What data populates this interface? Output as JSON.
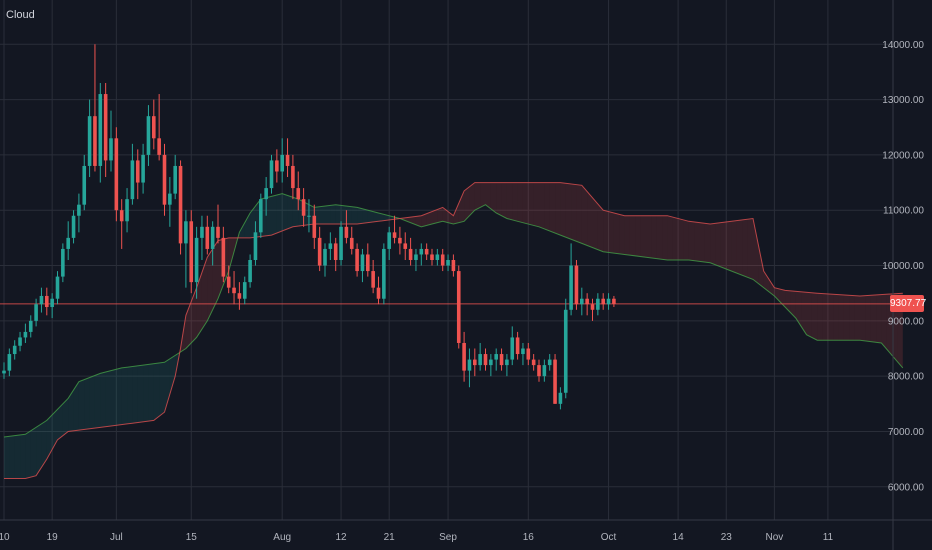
{
  "title": "Cloud",
  "colors": {
    "background": "#131722",
    "grid": "#2a2e39",
    "up": "#26a69a",
    "down": "#ef5350",
    "cloud_bull_fill": "rgba(38,166,154,0.14)",
    "cloud_bear_fill": "rgba(239,83,80,0.16)",
    "span_a": "#43a047",
    "span_b": "#e05050",
    "price_line": "#ef5350",
    "axis_text": "#b2b5be"
  },
  "current_price": {
    "value": 9307.77,
    "label": "9307.77"
  },
  "chart_data": {
    "type": "candlestick",
    "title": "Cloud",
    "ylim": [
      5400,
      14800
    ],
    "grid": true,
    "y_ticks": [
      6000,
      7000,
      8000,
      9000,
      10000,
      11000,
      12000,
      13000,
      14000
    ],
    "y_tick_labels": [
      "6000.00",
      "7000.00",
      "8000.00",
      "9000.00",
      "10000.00",
      "11000.00",
      "12000.00",
      "13000.00",
      "14000.00"
    ],
    "x_ticks": [
      {
        "label": "10",
        "index": 0
      },
      {
        "label": "19",
        "index": 9
      },
      {
        "label": "Jul",
        "index": 21
      },
      {
        "label": "15",
        "index": 35
      },
      {
        "label": "Aug",
        "index": 52
      },
      {
        "label": "12",
        "index": 63
      },
      {
        "label": "21",
        "index": 72
      },
      {
        "label": "Sep",
        "index": 83
      },
      {
        "label": "16",
        "index": 98
      },
      {
        "label": "Oct",
        "index": 113
      },
      {
        "label": "14",
        "index": 126
      },
      {
        "label": "23",
        "index": 135
      },
      {
        "label": "Nov",
        "index": 144
      },
      {
        "label": "11",
        "index": 154
      }
    ],
    "candles": [
      [
        8050,
        8250,
        7950,
        8100
      ],
      [
        8100,
        8500,
        8000,
        8400
      ],
      [
        8400,
        8650,
        8300,
        8550
      ],
      [
        8550,
        8800,
        8450,
        8700
      ],
      [
        8700,
        8950,
        8600,
        8800
      ],
      [
        8800,
        9100,
        8700,
        9000
      ],
      [
        9000,
        9400,
        8900,
        9300
      ],
      [
        9300,
        9600,
        9150,
        9450
      ],
      [
        9450,
        9600,
        9100,
        9250
      ],
      [
        9250,
        9500,
        9050,
        9400
      ],
      [
        9400,
        9900,
        9300,
        9800
      ],
      [
        9800,
        10400,
        9700,
        10300
      ],
      [
        10300,
        10800,
        10100,
        10500
      ],
      [
        10500,
        11000,
        10400,
        10900
      ],
      [
        10900,
        11300,
        10600,
        11100
      ],
      [
        11100,
        12000,
        11000,
        11800
      ],
      [
        11800,
        13000,
        11600,
        12700
      ],
      [
        12700,
        14000,
        11700,
        11800
      ],
      [
        11800,
        13300,
        11500,
        13100
      ],
      [
        13100,
        13300,
        11600,
        11900
      ],
      [
        11900,
        12800,
        11700,
        12300
      ],
      [
        12300,
        12500,
        10800,
        11000
      ],
      [
        11000,
        11200,
        10300,
        10800
      ],
      [
        10800,
        11400,
        10600,
        11200
      ],
      [
        11200,
        12200,
        11100,
        11900
      ],
      [
        11900,
        12100,
        11200,
        11500
      ],
      [
        11500,
        12200,
        11300,
        12000
      ],
      [
        12000,
        12900,
        11800,
        12700
      ],
      [
        12700,
        13000,
        12100,
        12300
      ],
      [
        12300,
        13100,
        11900,
        12000
      ],
      [
        12000,
        12200,
        10900,
        11100
      ],
      [
        11100,
        11600,
        10700,
        11300
      ],
      [
        11300,
        12000,
        11200,
        11800
      ],
      [
        11800,
        11900,
        10200,
        10400
      ],
      [
        10400,
        11000,
        9600,
        10800
      ],
      [
        10800,
        11000,
        9500,
        9700
      ],
      [
        9700,
        10700,
        9400,
        10500
      ],
      [
        10500,
        10900,
        10100,
        10700
      ],
      [
        10700,
        10900,
        10200,
        10300
      ],
      [
        10300,
        10800,
        10000,
        10700
      ],
      [
        10700,
        11100,
        10400,
        10500
      ],
      [
        10500,
        10700,
        9700,
        9800
      ],
      [
        9800,
        10000,
        9500,
        9600
      ],
      [
        9600,
        9900,
        9300,
        9500
      ],
      [
        9500,
        9700,
        9200,
        9400
      ],
      [
        9400,
        9800,
        9300,
        9700
      ],
      [
        9700,
        10200,
        9600,
        10100
      ],
      [
        10100,
        10800,
        10000,
        10600
      ],
      [
        10600,
        11300,
        10500,
        11200
      ],
      [
        11200,
        11600,
        10900,
        11400
      ],
      [
        11400,
        12000,
        11300,
        11900
      ],
      [
        11900,
        12100,
        11500,
        11700
      ],
      [
        11700,
        12300,
        11500,
        12000
      ],
      [
        12000,
        12300,
        11600,
        11800
      ],
      [
        11800,
        12000,
        11200,
        11400
      ],
      [
        11400,
        11700,
        11000,
        11200
      ],
      [
        11200,
        11400,
        10700,
        10900
      ],
      [
        10900,
        11200,
        10600,
        10900
      ],
      [
        10900,
        11100,
        10300,
        10500
      ],
      [
        10500,
        10700,
        9900,
        10000
      ],
      [
        10000,
        10400,
        9800,
        10300
      ],
      [
        10300,
        10600,
        10100,
        10400
      ],
      [
        10400,
        10500,
        9900,
        10100
      ],
      [
        10100,
        10800,
        10000,
        10700
      ],
      [
        10700,
        11000,
        10400,
        10500
      ],
      [
        10500,
        10700,
        10200,
        10300
      ],
      [
        10300,
        10400,
        9800,
        9900
      ],
      [
        9900,
        10300,
        9700,
        10200
      ],
      [
        10200,
        10400,
        9800,
        9900
      ],
      [
        9900,
        10100,
        9500,
        9600
      ],
      [
        9600,
        9800,
        9300,
        9400
      ],
      [
        9400,
        10400,
        9300,
        10300
      ],
      [
        10300,
        10700,
        10100,
        10600
      ],
      [
        10600,
        10900,
        10400,
        10500
      ],
      [
        10500,
        10700,
        10200,
        10400
      ],
      [
        10400,
        10600,
        10100,
        10300
      ],
      [
        10300,
        10500,
        10000,
        10100
      ],
      [
        10100,
        10300,
        9900,
        10200
      ],
      [
        10200,
        10400,
        10000,
        10300
      ],
      [
        10300,
        10400,
        10100,
        10200
      ],
      [
        10200,
        10300,
        10000,
        10100
      ],
      [
        10100,
        10300,
        10000,
        10200
      ],
      [
        10200,
        10300,
        9900,
        10000
      ],
      [
        10000,
        10200,
        9900,
        10100
      ],
      [
        10100,
        10200,
        9800,
        9900
      ],
      [
        9900,
        10000,
        8500,
        8600
      ],
      [
        8600,
        8800,
        7900,
        8100
      ],
      [
        8100,
        8500,
        7800,
        8300
      ],
      [
        8300,
        8500,
        8000,
        8200
      ],
      [
        8200,
        8600,
        8100,
        8400
      ],
      [
        8400,
        8500,
        8100,
        8200
      ],
      [
        8200,
        8400,
        8000,
        8300
      ],
      [
        8300,
        8500,
        8100,
        8400
      ],
      [
        8400,
        8500,
        8100,
        8200
      ],
      [
        8200,
        8400,
        8000,
        8300
      ],
      [
        8300,
        8900,
        8200,
        8700
      ],
      [
        8700,
        8800,
        8300,
        8400
      ],
      [
        8400,
        8600,
        8200,
        8500
      ],
      [
        8500,
        8600,
        8200,
        8300
      ],
      [
        8300,
        8400,
        8100,
        8200
      ],
      [
        8200,
        8300,
        7900,
        8000
      ],
      [
        8000,
        8300,
        7900,
        8200
      ],
      [
        8200,
        8400,
        8100,
        8300
      ],
      [
        8300,
        8400,
        7500,
        7500
      ],
      [
        7500,
        7800,
        7400,
        7700
      ],
      [
        7700,
        9400,
        7600,
        9200
      ],
      [
        9200,
        10400,
        9100,
        10000
      ],
      [
        10000,
        10100,
        9200,
        9300
      ],
      [
        9300,
        9600,
        9100,
        9400
      ],
      [
        9400,
        9500,
        9100,
        9300
      ],
      [
        9300,
        9400,
        9000,
        9200
      ],
      [
        9200,
        9500,
        9100,
        9400
      ],
      [
        9400,
        9500,
        9200,
        9300
      ],
      [
        9300,
        9500,
        9200,
        9400
      ],
      [
        9400,
        9450,
        9250,
        9308
      ]
    ],
    "span_a": [
      [
        0,
        6900
      ],
      [
        4,
        6950
      ],
      [
        8,
        7200
      ],
      [
        12,
        7600
      ],
      [
        14,
        7900
      ],
      [
        18,
        8050
      ],
      [
        22,
        8150
      ],
      [
        26,
        8200
      ],
      [
        30,
        8250
      ],
      [
        34,
        8500
      ],
      [
        36,
        8700
      ],
      [
        38,
        9000
      ],
      [
        40,
        9400
      ],
      [
        42,
        9900
      ],
      [
        44,
        10600
      ],
      [
        46,
        10950
      ],
      [
        48,
        11200
      ],
      [
        50,
        11250
      ],
      [
        52,
        11300
      ],
      [
        55,
        11200
      ],
      [
        58,
        11050
      ],
      [
        62,
        11100
      ],
      [
        66,
        11050
      ],
      [
        70,
        10950
      ],
      [
        74,
        10850
      ],
      [
        78,
        10700
      ],
      [
        80,
        10750
      ],
      [
        82,
        10800
      ],
      [
        84,
        10750
      ],
      [
        86,
        10800
      ],
      [
        88,
        11000
      ],
      [
        90,
        11100
      ],
      [
        92,
        10950
      ],
      [
        94,
        10850
      ],
      [
        96,
        10800
      ],
      [
        100,
        10700
      ],
      [
        104,
        10550
      ],
      [
        108,
        10400
      ],
      [
        112,
        10250
      ],
      [
        116,
        10200
      ],
      [
        120,
        10150
      ],
      [
        124,
        10100
      ],
      [
        128,
        10100
      ],
      [
        132,
        10050
      ],
      [
        136,
        9900
      ],
      [
        140,
        9750
      ],
      [
        144,
        9450
      ],
      [
        148,
        9050
      ],
      [
        150,
        8750
      ],
      [
        152,
        8650
      ],
      [
        160,
        8650
      ],
      [
        164,
        8600
      ],
      [
        168,
        8150
      ]
    ],
    "span_b": [
      [
        0,
        6150
      ],
      [
        4,
        6150
      ],
      [
        6,
        6200
      ],
      [
        8,
        6500
      ],
      [
        10,
        6850
      ],
      [
        12,
        7000
      ],
      [
        16,
        7050
      ],
      [
        20,
        7100
      ],
      [
        24,
        7150
      ],
      [
        28,
        7200
      ],
      [
        30,
        7350
      ],
      [
        32,
        8000
      ],
      [
        33,
        8500
      ],
      [
        34,
        9100
      ],
      [
        36,
        9600
      ],
      [
        38,
        10150
      ],
      [
        40,
        10450
      ],
      [
        42,
        10500
      ],
      [
        46,
        10500
      ],
      [
        50,
        10550
      ],
      [
        54,
        10700
      ],
      [
        58,
        10750
      ],
      [
        62,
        10750
      ],
      [
        66,
        10750
      ],
      [
        70,
        10800
      ],
      [
        74,
        10850
      ],
      [
        78,
        10900
      ],
      [
        82,
        11050
      ],
      [
        84,
        10900
      ],
      [
        86,
        11350
      ],
      [
        88,
        11500
      ],
      [
        92,
        11500
      ],
      [
        96,
        11500
      ],
      [
        100,
        11500
      ],
      [
        104,
        11500
      ],
      [
        108,
        11450
      ],
      [
        112,
        11000
      ],
      [
        116,
        10900
      ],
      [
        120,
        10900
      ],
      [
        124,
        10900
      ],
      [
        128,
        10800
      ],
      [
        132,
        10750
      ],
      [
        136,
        10800
      ],
      [
        140,
        10850
      ],
      [
        142,
        9900
      ],
      [
        144,
        9600
      ],
      [
        146,
        9550
      ],
      [
        152,
        9500
      ],
      [
        160,
        9450
      ],
      [
        168,
        9500
      ]
    ]
  }
}
